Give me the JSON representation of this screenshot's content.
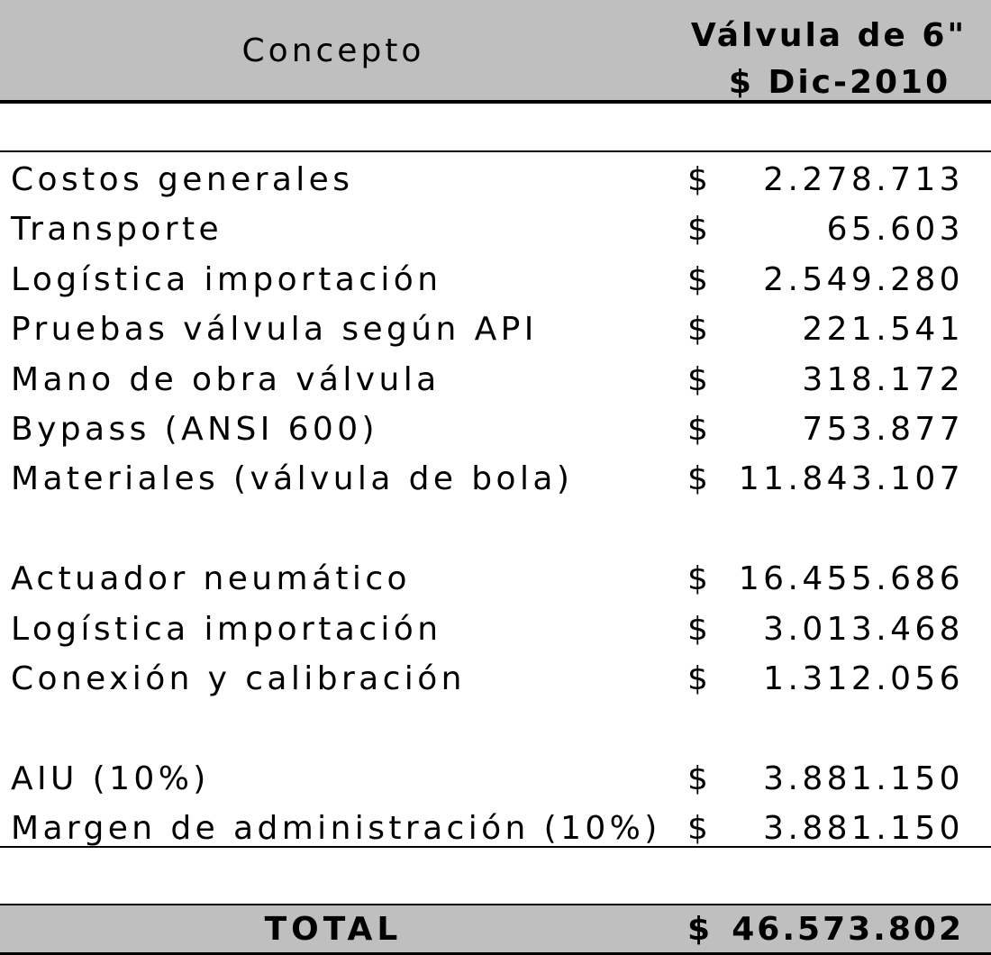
{
  "header": {
    "concept_label": "Concepto",
    "value_line1": "Válvula de 6\"",
    "value_line2": "$ Dic-2010"
  },
  "currency_symbol": "$",
  "groups": [
    [
      {
        "label": "Costos generales",
        "amount": "2.278.713"
      },
      {
        "label": "Transporte",
        "amount": "65.603"
      },
      {
        "label": "Logística importación",
        "amount": "2.549.280"
      },
      {
        "label": "Pruebas válvula según API",
        "amount": "221.541"
      },
      {
        "label": "Mano de obra válvula",
        "amount": "318.172"
      },
      {
        "label": "Bypass (ANSI 600)",
        "amount": "753.877"
      },
      {
        "label": "Materiales (válvula de bola)",
        "amount": "11.843.107"
      }
    ],
    [
      {
        "label": "Actuador neumático",
        "amount": "16.455.686"
      },
      {
        "label": "Logística importación",
        "amount": "3.013.468"
      },
      {
        "label": "Conexión y calibración",
        "amount": "1.312.056"
      }
    ],
    [
      {
        "label": "AIU (10%)",
        "amount": "3.881.150"
      },
      {
        "label": "Margen de administración (10%)",
        "amount": "3.881.150"
      }
    ]
  ],
  "total": {
    "label": "TOTAL",
    "amount": "46.573.802"
  }
}
